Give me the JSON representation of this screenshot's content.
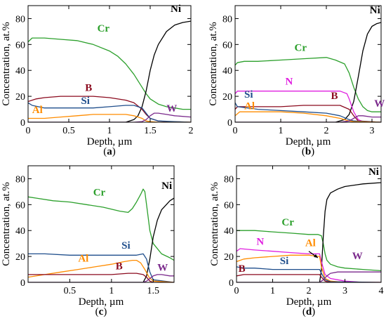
{
  "chart_data": [
    {
      "type": "line",
      "panel_label": "(a)",
      "xlabel": "Depth, µm",
      "ylabel": "Concentration, at.%",
      "xlim": [
        0,
        2
      ],
      "ylim": [
        0,
        90
      ],
      "xticks": [
        "0",
        "0.5",
        "1",
        "1.5",
        "2"
      ],
      "xtick_values": [
        0,
        0.5,
        1,
        1.5,
        2
      ],
      "yticks": [
        "0",
        "20",
        "40",
        "60",
        "80"
      ],
      "ytick_values": [
        0,
        20,
        40,
        60,
        80
      ],
      "series": [
        {
          "name": "Cr",
          "color": "#2ca02c",
          "x": [
            0,
            0.05,
            0.2,
            0.4,
            0.6,
            0.8,
            1.0,
            1.1,
            1.2,
            1.3,
            1.4,
            1.45,
            1.5,
            1.6,
            1.7,
            1.8,
            1.9,
            2.0
          ],
          "y": [
            62,
            65,
            65,
            64,
            63,
            60,
            55,
            51,
            45,
            37,
            27,
            22,
            18,
            14,
            12,
            11,
            10,
            10
          ]
        },
        {
          "name": "Ni",
          "color": "#000000",
          "x": [
            0,
            1.2,
            1.3,
            1.35,
            1.4,
            1.45,
            1.5,
            1.55,
            1.6,
            1.7,
            1.8,
            1.9,
            2.0
          ],
          "y": [
            0,
            0,
            2,
            5,
            12,
            24,
            40,
            52,
            60,
            70,
            75,
            77,
            78
          ]
        },
        {
          "name": "B",
          "color": "#8b0a1e",
          "x": [
            0,
            0.1,
            0.2,
            0.4,
            0.6,
            0.8,
            1.0,
            1.2,
            1.3,
            1.4,
            1.45,
            1.5,
            1.6,
            1.7,
            2.0
          ],
          "y": [
            16,
            18,
            19,
            20,
            20,
            20,
            19,
            17,
            15,
            10,
            6,
            3,
            1,
            0.5,
            0
          ]
        },
        {
          "name": "Si",
          "color": "#1f4e8c",
          "x": [
            0,
            0.05,
            0.2,
            0.4,
            0.6,
            0.8,
            1.0,
            1.2,
            1.3,
            1.4,
            1.45,
            1.5,
            1.6,
            2.0
          ],
          "y": [
            15,
            13,
            11,
            11,
            11,
            11,
            12,
            13,
            13,
            11,
            7,
            3,
            1,
            0
          ]
        },
        {
          "name": "Al",
          "color": "#ff8c00",
          "x": [
            0,
            0.2,
            0.4,
            0.6,
            0.8,
            1.0,
            1.2,
            1.3,
            1.4,
            1.45,
            1.5,
            1.6,
            2.0
          ],
          "y": [
            3,
            3,
            4,
            5,
            6,
            6,
            6,
            5,
            3,
            1,
            0.5,
            0,
            0
          ]
        },
        {
          "name": "W",
          "color": "#7b2a8c",
          "x": [
            0,
            1.3,
            1.4,
            1.45,
            1.5,
            1.55,
            1.6,
            1.7,
            1.8,
            2.0
          ],
          "y": [
            0,
            0,
            0.5,
            2,
            5,
            7,
            7,
            6,
            5,
            4
          ]
        }
      ],
      "labels": [
        {
          "text": "Ni",
          "color": "#000000",
          "x": 1.75,
          "y": 85
        },
        {
          "text": "Cr",
          "color": "#2ca02c",
          "x": 0.85,
          "y": 70
        },
        {
          "text": "B",
          "color": "#8b0a1e",
          "x": 0.7,
          "y": 24
        },
        {
          "text": "Si",
          "color": "#1f4e8c",
          "x": 0.65,
          "y": 14
        },
        {
          "text": "Al",
          "color": "#ff8c00",
          "x": 0.05,
          "y": 7
        },
        {
          "text": "W",
          "color": "#7b2a8c",
          "x": 1.7,
          "y": 8
        }
      ]
    },
    {
      "type": "line",
      "panel_label": "(b)",
      "xlabel": "Depth, µm",
      "ylabel": "Concentration, at.%",
      "xlim": [
        0,
        3.2
      ],
      "ylim": [
        0,
        90
      ],
      "xticks": [
        "0",
        "1",
        "2",
        "3"
      ],
      "xtick_values": [
        0,
        1,
        2,
        3
      ],
      "yticks": [
        "0",
        "20",
        "40",
        "60",
        "80"
      ],
      "ytick_values": [
        0,
        20,
        40,
        60,
        80
      ],
      "series": [
        {
          "name": "Cr",
          "color": "#2ca02c",
          "x": [
            0,
            0.05,
            0.2,
            0.5,
            1.0,
            1.5,
            2.0,
            2.2,
            2.4,
            2.5,
            2.6,
            2.7,
            2.8,
            2.9,
            3.0,
            3.2
          ],
          "y": [
            44,
            46,
            47,
            47,
            48,
            49,
            50,
            48,
            45,
            38,
            27,
            18,
            12,
            9,
            8,
            8
          ]
        },
        {
          "name": "Ni",
          "color": "#000000",
          "x": [
            0,
            2.2,
            2.4,
            2.5,
            2.6,
            2.7,
            2.8,
            2.9,
            3.0,
            3.1,
            3.2
          ],
          "y": [
            0,
            0,
            2,
            6,
            16,
            35,
            55,
            68,
            74,
            76,
            77
          ]
        },
        {
          "name": "N",
          "color": "#e020e0",
          "x": [
            0,
            0.05,
            0.5,
            1.0,
            1.5,
            2.0,
            2.3,
            2.45,
            2.5,
            2.6,
            2.7,
            2.8,
            3.2
          ],
          "y": [
            22,
            24,
            24,
            24,
            24,
            24,
            24,
            22,
            18,
            8,
            2,
            0.5,
            0
          ]
        },
        {
          "name": "B",
          "color": "#8b0a1e",
          "x": [
            0,
            0.05,
            0.5,
            1.0,
            1.5,
            2.0,
            2.3,
            2.5,
            2.6,
            2.7,
            3.2
          ],
          "y": [
            10,
            12,
            12,
            12,
            13,
            13,
            13,
            10,
            5,
            1,
            0
          ]
        },
        {
          "name": "Si",
          "color": "#1f4e8c",
          "x": [
            0,
            0.05,
            0.5,
            1.0,
            1.5,
            2.0,
            2.3,
            2.5,
            2.6,
            3.2
          ],
          "y": [
            15,
            12,
            10,
            9,
            8,
            7,
            5,
            2,
            1,
            0
          ]
        },
        {
          "name": "Al",
          "color": "#ff8c00",
          "x": [
            0,
            0.1,
            0.5,
            1.0,
            1.5,
            2.0,
            2.3,
            2.5,
            2.6,
            3.2
          ],
          "y": [
            5,
            8,
            8,
            8,
            7,
            5,
            3,
            1,
            0.5,
            0
          ]
        },
        {
          "name": "W",
          "color": "#7b2a8c",
          "x": [
            0,
            2.3,
            2.5,
            2.6,
            2.7,
            2.8,
            3.0,
            3.2
          ],
          "y": [
            0,
            0,
            1,
            3,
            5,
            5,
            4,
            4
          ]
        }
      ],
      "labels": [
        {
          "text": "Ni",
          "color": "#000000",
          "x": 2.95,
          "y": 84
        },
        {
          "text": "Cr",
          "color": "#2ca02c",
          "x": 1.3,
          "y": 55
        },
        {
          "text": "N",
          "color": "#e020e0",
          "x": 1.1,
          "y": 29
        },
        {
          "text": "B",
          "color": "#8b0a1e",
          "x": 2.1,
          "y": 18
        },
        {
          "text": "Si",
          "color": "#1f4e8c",
          "x": 0.2,
          "y": 19
        },
        {
          "text": "Al",
          "color": "#ff8c00",
          "x": 0.2,
          "y": 10
        },
        {
          "text": "W",
          "color": "#7b2a8c",
          "x": 3.05,
          "y": 12
        }
      ]
    },
    {
      "type": "line",
      "panel_label": "(c)",
      "xlabel": "Depth, µm",
      "ylabel": "Concentration, at.%",
      "xlim": [
        0,
        1.75
      ],
      "ylim": [
        0,
        90
      ],
      "xticks": [
        "0.5",
        "1",
        "1.5"
      ],
      "xtick_values": [
        0.5,
        1,
        1.5
      ],
      "yticks": [
        "0",
        "20",
        "40",
        "60",
        "80"
      ],
      "ytick_values": [
        0,
        20,
        40,
        60,
        80
      ],
      "series": [
        {
          "name": "Cr",
          "color": "#2ca02c",
          "x": [
            0,
            0.1,
            0.3,
            0.5,
            0.7,
            0.9,
            1.1,
            1.2,
            1.25,
            1.3,
            1.35,
            1.38,
            1.4,
            1.43,
            1.46,
            1.5,
            1.6,
            1.7,
            1.75
          ],
          "y": [
            66,
            65,
            63,
            62,
            60,
            58,
            55,
            54,
            57,
            62,
            68,
            72,
            70,
            55,
            40,
            30,
            22,
            19,
            17
          ]
        },
        {
          "name": "Ni",
          "color": "#000000",
          "x": [
            0,
            1.38,
            1.42,
            1.46,
            1.5,
            1.55,
            1.6,
            1.7,
            1.75
          ],
          "y": [
            0,
            0,
            5,
            18,
            35,
            48,
            56,
            63,
            65
          ]
        },
        {
          "name": "Si",
          "color": "#1f4e8c",
          "x": [
            0,
            0.2,
            0.5,
            0.8,
            1.1,
            1.3,
            1.38,
            1.42,
            1.46,
            1.5,
            1.75
          ],
          "y": [
            22,
            22,
            21,
            21,
            21,
            21,
            22,
            18,
            8,
            2,
            0
          ]
        },
        {
          "name": "Al",
          "color": "#ff8c00",
          "x": [
            0,
            0.2,
            0.4,
            0.6,
            0.8,
            1.0,
            1.15,
            1.25,
            1.3,
            1.35,
            1.4,
            1.45,
            1.5,
            1.75
          ],
          "y": [
            4,
            6,
            8,
            10,
            12,
            14,
            16,
            17,
            17,
            15,
            10,
            4,
            1,
            0
          ]
        },
        {
          "name": "B",
          "color": "#8b0a1e",
          "x": [
            0,
            0.2,
            0.5,
            0.8,
            1.0,
            1.2,
            1.3,
            1.38,
            1.42,
            1.46,
            1.5,
            1.75
          ],
          "y": [
            6,
            6,
            6,
            6,
            6,
            7,
            7,
            6,
            4,
            1,
            0,
            0
          ]
        },
        {
          "name": "W",
          "color": "#7b2a8c",
          "x": [
            0,
            1.38,
            1.42,
            1.46,
            1.5,
            1.55,
            1.6,
            1.7,
            1.75
          ],
          "y": [
            0,
            0,
            1,
            3,
            5,
            6,
            6,
            5,
            5
          ]
        }
      ],
      "labels": [
        {
          "text": "Ni",
          "color": "#000000",
          "x": 1.6,
          "y": 72
        },
        {
          "text": "Cr",
          "color": "#2ca02c",
          "x": 0.78,
          "y": 67
        },
        {
          "text": "Si",
          "color": "#1f4e8c",
          "x": 1.12,
          "y": 26
        },
        {
          "text": "Al",
          "color": "#ff8c00",
          "x": 0.6,
          "y": 16
        },
        {
          "text": "B",
          "color": "#8b0a1e",
          "x": 1.05,
          "y": 10
        },
        {
          "text": "W",
          "color": "#7b2a8c",
          "x": 1.55,
          "y": 9
        }
      ]
    },
    {
      "type": "line",
      "panel_label": "(d)",
      "xlabel": "Depth, µm",
      "ylabel": "Concentration, at.%",
      "xlim": [
        0,
        4
      ],
      "ylim": [
        0,
        90
      ],
      "xticks": [
        "0",
        "1",
        "2",
        "3",
        "4"
      ],
      "xtick_values": [
        0,
        1,
        2,
        3,
        4
      ],
      "yticks": [
        "0",
        "20",
        "40",
        "60",
        "80"
      ],
      "ytick_values": [
        0,
        20,
        40,
        60,
        80
      ],
      "series": [
        {
          "name": "Cr",
          "color": "#2ca02c",
          "x": [
            0,
            0.2,
            0.5,
            1.0,
            1.5,
            2.0,
            2.25,
            2.35,
            2.4,
            2.45,
            2.5,
            2.6,
            2.8,
            3.0,
            3.5,
            4.0
          ],
          "y": [
            40,
            40,
            40,
            39,
            38,
            37,
            37,
            36,
            30,
            22,
            17,
            14,
            12,
            11,
            10,
            9
          ]
        },
        {
          "name": "Ni",
          "color": "#000000",
          "x": [
            0,
            2.3,
            2.35,
            2.4,
            2.45,
            2.5,
            2.6,
            2.8,
            3.0,
            3.5,
            4.0
          ],
          "y": [
            0,
            0,
            10,
            35,
            55,
            64,
            69,
            72,
            74,
            76,
            77
          ]
        },
        {
          "name": "N",
          "color": "#e020e0",
          "x": [
            0,
            0.1,
            0.5,
            1.0,
            1.5,
            2.0,
            2.3,
            2.35,
            2.45,
            2.6,
            2.8,
            3.0,
            3.5,
            4.0
          ],
          "y": [
            24,
            26,
            25,
            24,
            23,
            22,
            22,
            16,
            6,
            3,
            2,
            1,
            0,
            0
          ]
        },
        {
          "name": "Al",
          "color": "#ff8c00",
          "x": [
            0,
            0.2,
            0.5,
            1.0,
            1.5,
            2.0,
            2.3,
            2.35,
            2.45,
            2.6,
            3.0,
            4.0
          ],
          "y": [
            16,
            18,
            19,
            20,
            21,
            21,
            20,
            12,
            3,
            1,
            0,
            0
          ]
        },
        {
          "name": "Si",
          "color": "#1f4e8c",
          "x": [
            0,
            0.2,
            0.5,
            1.0,
            1.5,
            2.0,
            2.3,
            2.35,
            2.45,
            2.6,
            4.0
          ],
          "y": [
            12,
            11,
            11,
            10,
            10,
            10,
            10,
            7,
            2,
            0.5,
            0
          ]
        },
        {
          "name": "B",
          "color": "#8b0a1e",
          "x": [
            0,
            0.2,
            0.5,
            1.0,
            1.5,
            2.0,
            2.3,
            2.35,
            2.45,
            2.6,
            4.0
          ],
          "y": [
            5,
            6,
            6,
            6,
            6,
            6,
            6,
            4,
            1,
            0,
            0
          ]
        },
        {
          "name": "W",
          "color": "#7b2a8c",
          "x": [
            0,
            2.3,
            2.4,
            2.5,
            2.6,
            2.8,
            3.0,
            3.5,
            4.0
          ],
          "y": [
            0,
            0,
            2,
            5,
            7,
            8,
            8,
            8,
            8
          ]
        }
      ],
      "labels": [
        {
          "text": "Ni",
          "color": "#000000",
          "x": 3.65,
          "y": 83
        },
        {
          "text": "Cr",
          "color": "#2ca02c",
          "x": 1.25,
          "y": 44
        },
        {
          "text": "N",
          "color": "#e020e0",
          "x": 0.55,
          "y": 29
        },
        {
          "text": "Al",
          "color": "#ff8c00",
          "x": 1.9,
          "y": 28
        },
        {
          "text": "Si",
          "color": "#1f4e8c",
          "x": 1.2,
          "y": 14
        },
        {
          "text": "B",
          "color": "#8b0a1e",
          "x": 0.05,
          "y": 8
        },
        {
          "text": "W",
          "color": "#7b2a8c",
          "x": 3.2,
          "y": 18
        }
      ],
      "annotation_arrow": {
        "color": "#000000",
        "from": [
          2.0,
          24
        ],
        "to": [
          2.25,
          19
        ]
      }
    }
  ]
}
